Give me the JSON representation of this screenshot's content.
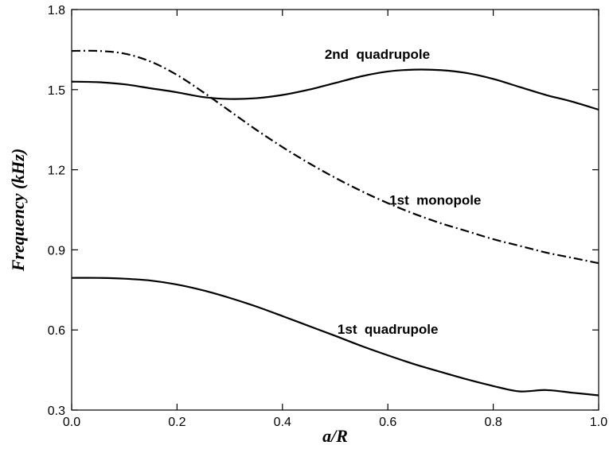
{
  "chart_data": {
    "type": "line",
    "title": "",
    "xlabel": "a/R",
    "ylabel": "Frequency  (kHz)",
    "xlim": [
      0.0,
      1.0
    ],
    "ylim": [
      0.3,
      1.8
    ],
    "grid": false,
    "x_ticks": [
      "0.0",
      "0.2",
      "0.4",
      "0.6",
      "0.8",
      "1.0"
    ],
    "y_ticks": [
      "0.3",
      "0.6",
      "0.9",
      "1.2",
      "1.5",
      "1.8"
    ],
    "series": [
      {
        "name": "2nd  quadrupole",
        "style": "solid",
        "x": [
          0.0,
          0.05,
          0.1,
          0.15,
          0.2,
          0.25,
          0.3,
          0.35,
          0.4,
          0.45,
          0.5,
          0.55,
          0.6,
          0.65,
          0.7,
          0.75,
          0.8,
          0.85,
          0.9,
          0.95,
          1.0
        ],
        "y": [
          1.53,
          1.528,
          1.52,
          1.505,
          1.49,
          1.472,
          1.465,
          1.468,
          1.48,
          1.5,
          1.525,
          1.55,
          1.568,
          1.575,
          1.573,
          1.562,
          1.54,
          1.51,
          1.48,
          1.455,
          1.425
        ]
      },
      {
        "name": "1st  monopole",
        "style": "dashdot",
        "x": [
          0.0,
          0.05,
          0.1,
          0.15,
          0.2,
          0.25,
          0.3,
          0.35,
          0.4,
          0.45,
          0.5,
          0.55,
          0.6,
          0.65,
          0.7,
          0.75,
          0.8,
          0.85,
          0.9,
          0.95,
          1.0
        ],
        "y": [
          1.645,
          1.645,
          1.635,
          1.605,
          1.555,
          1.49,
          1.42,
          1.35,
          1.285,
          1.225,
          1.17,
          1.12,
          1.075,
          1.035,
          1.0,
          0.97,
          0.94,
          0.915,
          0.89,
          0.87,
          0.85
        ]
      },
      {
        "name": "1st  quadrupole",
        "style": "solid",
        "x": [
          0.0,
          0.05,
          0.1,
          0.15,
          0.2,
          0.25,
          0.3,
          0.35,
          0.4,
          0.45,
          0.5,
          0.55,
          0.6,
          0.65,
          0.7,
          0.75,
          0.8,
          0.85,
          0.9,
          0.95,
          1.0
        ],
        "y": [
          0.795,
          0.795,
          0.792,
          0.785,
          0.77,
          0.748,
          0.72,
          0.688,
          0.652,
          0.615,
          0.578,
          0.54,
          0.505,
          0.472,
          0.443,
          0.415,
          0.39,
          0.37,
          0.375,
          0.365,
          0.355
        ]
      }
    ],
    "annotations": [
      {
        "text": "2nd  quadrupole",
        "x": 0.58,
        "y": 1.615
      },
      {
        "text": "1st  monopole",
        "x": 0.69,
        "y": 1.07
      },
      {
        "text": "1st  quadrupole",
        "x": 0.6,
        "y": 0.585
      }
    ]
  }
}
